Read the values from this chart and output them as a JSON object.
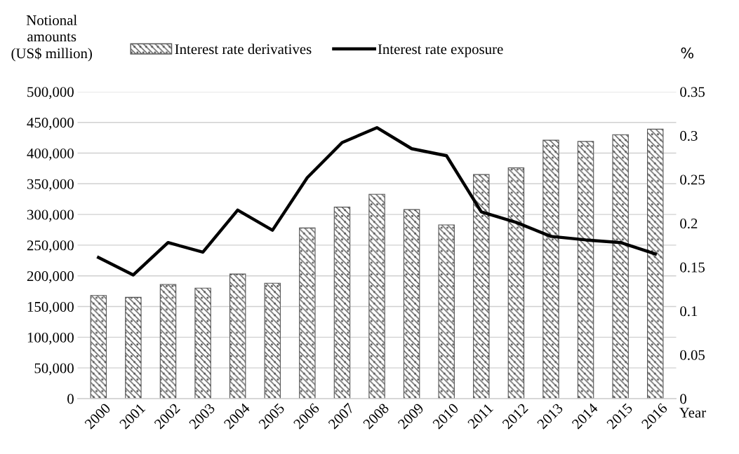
{
  "chart_data": {
    "type": "bar",
    "ylabel": "Notional\namounts\n(US$ million)",
    "y2label": "%",
    "xlabel": "Year",
    "categories": [
      "2000",
      "2001",
      "2002",
      "2003",
      "2004",
      "2005",
      "2006",
      "2007",
      "2008",
      "2009",
      "2010",
      "2011",
      "2012",
      "2013",
      "2014",
      "2015",
      "2016"
    ],
    "series": [
      {
        "name": "Interest rate derivatives",
        "color": "#555555",
        "values": [
          168000,
          165000,
          186000,
          180000,
          203000,
          188000,
          278000,
          312000,
          333000,
          308000,
          283000,
          365000,
          376000,
          421000,
          419000,
          430000,
          439000
        ]
      },
      {
        "name": "Interest rate exposure",
        "type": "line",
        "axis": "y2",
        "color": "#000000",
        "values": [
          0.161,
          0.141,
          0.178,
          0.167,
          0.215,
          0.192,
          0.252,
          0.292,
          0.309,
          0.285,
          0.277,
          0.213,
          0.201,
          0.185,
          0.181,
          0.178,
          0.165
        ]
      }
    ],
    "ylim": [
      0,
      500000
    ],
    "yticks": [
      {
        "value": 0,
        "label": "0"
      },
      {
        "value": 50000,
        "label": "50,000"
      },
      {
        "value": 100000,
        "label": "100,000"
      },
      {
        "value": 150000,
        "label": "150,000"
      },
      {
        "value": 200000,
        "label": "200,000"
      },
      {
        "value": 250000,
        "label": "250,000"
      },
      {
        "value": 300000,
        "label": "300,000"
      },
      {
        "value": 350000,
        "label": "350,000"
      },
      {
        "value": 400000,
        "label": "400,000"
      },
      {
        "value": 450000,
        "label": "450,000"
      },
      {
        "value": 500000,
        "label": "500,000"
      }
    ],
    "y2lim": [
      0,
      0.35
    ],
    "y2ticks": [
      0,
      0.05,
      0.1,
      0.15,
      0.2,
      0.25,
      0.3,
      0.35
    ],
    "grid": "y",
    "legend": "top",
    "marker": "none",
    "line_style": "solid"
  }
}
